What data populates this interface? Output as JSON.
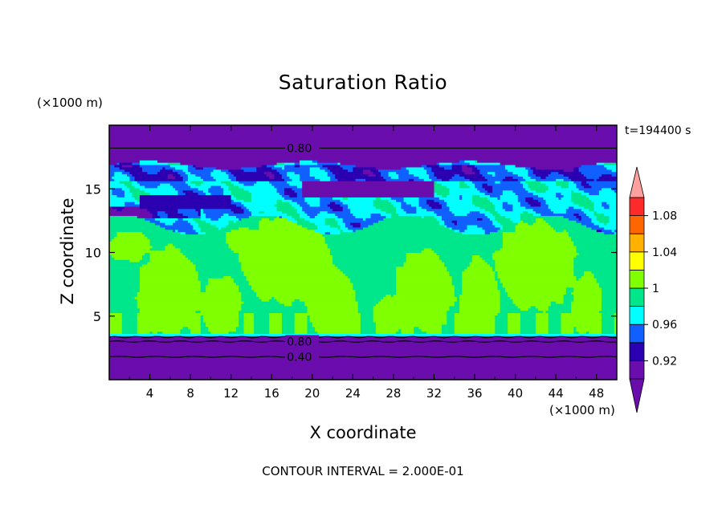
{
  "chart_data": {
    "type": "heatmap",
    "title": "Saturation Ratio",
    "xlabel": "X coordinate",
    "ylabel": "Z coordinate",
    "x_unit": "(×1000 m)",
    "y_unit": "(×1000 m)",
    "time_label": "t=194400 s",
    "footnote": "CONTOUR INTERVAL = 2.000E-01",
    "xlim": [
      0,
      50
    ],
    "ylim": [
      0,
      20
    ],
    "x_ticks": [
      4,
      8,
      12,
      16,
      20,
      24,
      28,
      32,
      36,
      40,
      44,
      48
    ],
    "y_ticks": [
      5,
      10,
      15
    ],
    "colorbar": {
      "levels": [
        0.9,
        0.92,
        0.94,
        0.96,
        0.98,
        1.0,
        1.02,
        1.04,
        1.06,
        1.08,
        1.1
      ],
      "tick_labels": [
        "0.92",
        "0.96",
        "1",
        "1.04",
        "1.08"
      ],
      "tick_values": [
        0.92,
        0.96,
        1.0,
        1.04,
        1.08
      ],
      "colors": [
        "#6a0dad",
        "#2a00b0",
        "#1060ff",
        "#00ffff",
        "#00e68a",
        "#7fff00",
        "#ffff00",
        "#ffb000",
        "#ff6600",
        "#ff2a2a"
      ],
      "under_color": "#6a0dad",
      "over_color": "#ffa0a0"
    },
    "contour_labels": [
      {
        "text": "0.80",
        "x": 17.5,
        "y": 18.2
      },
      {
        "text": "0.80",
        "x": 17.5,
        "y": 3.0
      },
      {
        "text": "0.40",
        "x": 17.5,
        "y": 1.8
      }
    ],
    "regions": [
      {
        "name": "upper dry layer",
        "z_range": [
          16.8,
          20
        ],
        "value": 0.9
      },
      {
        "name": "upper moist band",
        "z_range": [
          12,
          16.8
        ],
        "value": 0.93
      },
      {
        "name": "mid-level air",
        "z_range": [
          3.6,
          12
        ],
        "value": 0.99
      },
      {
        "name": "saturated plumes",
        "value": 1.01
      },
      {
        "name": "lower dry layer",
        "z_range": [
          0,
          3.4
        ],
        "value": 0.9
      }
    ]
  }
}
